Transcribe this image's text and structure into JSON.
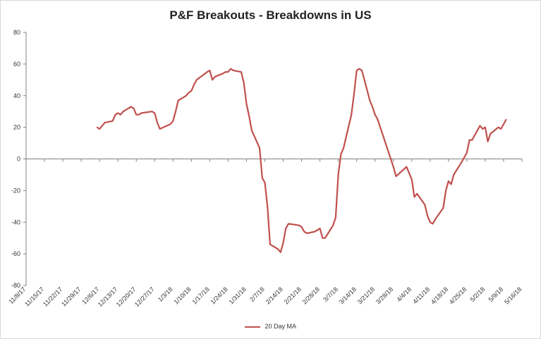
{
  "chart_data": {
    "type": "line",
    "title": "P&F Breakouts - Breakdowns in US",
    "xlabel": "",
    "ylabel": "",
    "ylim": [
      -80,
      80
    ],
    "yticks": [
      80,
      60,
      40,
      20,
      0,
      -20,
      -40,
      -60,
      -80
    ],
    "x_tick_labels": [
      "11/8/17",
      "11/15/17",
      "11/22/17",
      "11/29/17",
      "12/6/17",
      "12/13/17",
      "12/20/17",
      "12/27/17",
      "1/3/18",
      "1/10/18",
      "1/17/18",
      "1/24/18",
      "1/31/18",
      "2/7/18",
      "2/14/18",
      "2/21/18",
      "2/28/18",
      "3/7/18",
      "3/14/18",
      "3/21/18",
      "3/28/18",
      "4/4/18",
      "4/11/18",
      "4/18/18",
      "4/25/18",
      "5/2/18",
      "5/9/18",
      "5/16/18"
    ],
    "grid": false,
    "legend_position": "bottom",
    "series": [
      {
        "name": "20 Day MA",
        "color": "#c0504d",
        "points": [
          [
            "12/5/17",
            20
          ],
          [
            "12/6/17",
            19
          ],
          [
            "12/7/17",
            21
          ],
          [
            "12/8/17",
            23
          ],
          [
            "12/11/17",
            24
          ],
          [
            "12/12/17",
            28
          ],
          [
            "12/13/17",
            29
          ],
          [
            "12/14/17",
            28
          ],
          [
            "12/15/17",
            30
          ],
          [
            "12/18/17",
            33
          ],
          [
            "12/19/17",
            32
          ],
          [
            "12/20/17",
            28
          ],
          [
            "12/21/17",
            28
          ],
          [
            "12/22/17",
            29
          ],
          [
            "12/26/17",
            30
          ],
          [
            "12/27/17",
            29
          ],
          [
            "12/28/17",
            23
          ],
          [
            "12/29/17",
            19
          ],
          [
            "1/2/18",
            22
          ],
          [
            "1/3/18",
            24
          ],
          [
            "1/4/18",
            30
          ],
          [
            "1/5/18",
            37
          ],
          [
            "1/8/18",
            40
          ],
          [
            "1/9/18",
            42
          ],
          [
            "1/10/18",
            43
          ],
          [
            "1/11/18",
            47
          ],
          [
            "1/12/18",
            50
          ],
          [
            "1/16/18",
            55
          ],
          [
            "1/17/18",
            56
          ],
          [
            "1/18/18",
            50
          ],
          [
            "1/19/18",
            52
          ],
          [
            "1/22/18",
            54
          ],
          [
            "1/23/18",
            55
          ],
          [
            "1/24/18",
            55
          ],
          [
            "1/25/18",
            57
          ],
          [
            "1/26/18",
            56
          ],
          [
            "1/29/18",
            55
          ],
          [
            "1/30/18",
            48
          ],
          [
            "1/31/18",
            35
          ],
          [
            "2/1/18",
            27
          ],
          [
            "2/2/18",
            18
          ],
          [
            "2/5/18",
            7
          ],
          [
            "2/6/18",
            -12
          ],
          [
            "2/7/18",
            -15
          ],
          [
            "2/8/18",
            -30
          ],
          [
            "2/9/18",
            -54
          ],
          [
            "2/12/18",
            -57
          ],
          [
            "2/13/18",
            -59
          ],
          [
            "2/14/18",
            -53
          ],
          [
            "2/15/18",
            -44
          ],
          [
            "2/16/18",
            -41
          ],
          [
            "2/20/18",
            -42
          ],
          [
            "2/21/18",
            -43
          ],
          [
            "2/22/18",
            -46
          ],
          [
            "2/23/18",
            -47
          ],
          [
            "2/26/18",
            -46
          ],
          [
            "2/27/18",
            -45
          ],
          [
            "2/28/18",
            -44
          ],
          [
            "3/1/18",
            -50
          ],
          [
            "3/2/18",
            -50
          ],
          [
            "3/5/18",
            -42
          ],
          [
            "3/6/18",
            -37
          ],
          [
            "3/7/18",
            -10
          ],
          [
            "3/8/18",
            3
          ],
          [
            "3/9/18",
            7
          ],
          [
            "3/12/18",
            28
          ],
          [
            "3/13/18",
            41
          ],
          [
            "3/14/18",
            56
          ],
          [
            "3/15/18",
            57
          ],
          [
            "3/16/18",
            56
          ],
          [
            "3/19/18",
            37
          ],
          [
            "3/20/18",
            33
          ],
          [
            "3/21/18",
            28
          ],
          [
            "3/22/18",
            25
          ],
          [
            "3/23/18",
            20
          ],
          [
            "3/26/18",
            5
          ],
          [
            "3/27/18",
            0
          ],
          [
            "3/28/18",
            -5
          ],
          [
            "3/29/18",
            -11
          ],
          [
            "4/2/18",
            -5
          ],
          [
            "4/3/18",
            -9
          ],
          [
            "4/4/18",
            -13
          ],
          [
            "4/5/18",
            -24
          ],
          [
            "4/6/18",
            -22
          ],
          [
            "4/9/18",
            -29
          ],
          [
            "4/10/18",
            -36
          ],
          [
            "4/11/18",
            -40
          ],
          [
            "4/12/18",
            -41
          ],
          [
            "4/13/18",
            -38
          ],
          [
            "4/16/18",
            -31
          ],
          [
            "4/17/18",
            -20
          ],
          [
            "4/18/18",
            -14
          ],
          [
            "4/19/18",
            -16
          ],
          [
            "4/20/18",
            -10
          ],
          [
            "4/23/18",
            -2
          ],
          [
            "4/24/18",
            1
          ],
          [
            "4/25/18",
            4
          ],
          [
            "4/26/18",
            12
          ],
          [
            "4/27/18",
            12
          ],
          [
            "4/30/18",
            21
          ],
          [
            "5/1/18",
            19
          ],
          [
            "5/2/18",
            20
          ],
          [
            "5/3/18",
            11
          ],
          [
            "5/4/18",
            16
          ],
          [
            "5/7/18",
            20
          ],
          [
            "5/8/18",
            19
          ],
          [
            "5/9/18",
            22
          ],
          [
            "5/10/18",
            25
          ]
        ]
      }
    ]
  }
}
